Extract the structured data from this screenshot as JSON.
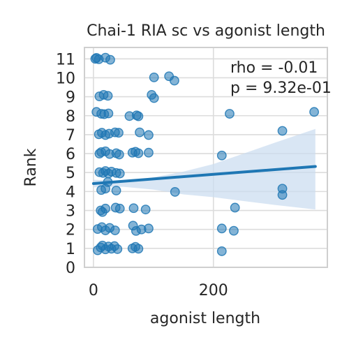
{
  "chart_data": {
    "type": "scatter",
    "title": "Chai-1 RIA sc vs agonist length",
    "xlabel": "agonist length",
    "ylabel": "Rank",
    "xlim": [
      -15,
      390
    ],
    "ylim": [
      0,
      11.6
    ],
    "xticks": [
      0,
      200
    ],
    "yticks": [
      0,
      1,
      2,
      3,
      4,
      5,
      6,
      7,
      8,
      9,
      10,
      11
    ],
    "grid": true,
    "annotations": [
      "rho = -0.01",
      "p = 9.32e-01"
    ],
    "color": "#1f77b4",
    "band_color": "#c9dcef",
    "points": [
      {
        "x": 3,
        "y": 11.0
      },
      {
        "x": 5,
        "y": 11.05
      },
      {
        "x": 9,
        "y": 10.98
      },
      {
        "x": 20,
        "y": 11.06
      },
      {
        "x": 28,
        "y": 10.95
      },
      {
        "x": 101,
        "y": 10.02
      },
      {
        "x": 126,
        "y": 10.08
      },
      {
        "x": 135,
        "y": 9.85
      },
      {
        "x": 10,
        "y": 9.02
      },
      {
        "x": 17,
        "y": 9.1
      },
      {
        "x": 24,
        "y": 9.05
      },
      {
        "x": 97,
        "y": 9.1
      },
      {
        "x": 101,
        "y": 8.93
      },
      {
        "x": 5,
        "y": 8.2
      },
      {
        "x": 13,
        "y": 8.1
      },
      {
        "x": 18,
        "y": 8.08
      },
      {
        "x": 25,
        "y": 8.12
      },
      {
        "x": 60,
        "y": 7.98
      },
      {
        "x": 72,
        "y": 8.02
      },
      {
        "x": 75,
        "y": 7.97
      },
      {
        "x": 227,
        "y": 8.1
      },
      {
        "x": 368,
        "y": 8.2
      },
      {
        "x": 9,
        "y": 7.02
      },
      {
        "x": 14,
        "y": 7.1
      },
      {
        "x": 20,
        "y": 6.98
      },
      {
        "x": 26,
        "y": 7.05
      },
      {
        "x": 36,
        "y": 7.12
      },
      {
        "x": 42,
        "y": 7.1
      },
      {
        "x": 77,
        "y": 7.12
      },
      {
        "x": 92,
        "y": 6.98
      },
      {
        "x": 315,
        "y": 7.2
      },
      {
        "x": 10,
        "y": 6.0
      },
      {
        "x": 13,
        "y": 6.08
      },
      {
        "x": 20,
        "y": 6.12
      },
      {
        "x": 27,
        "y": 5.98
      },
      {
        "x": 38,
        "y": 6.02
      },
      {
        "x": 43,
        "y": 5.95
      },
      {
        "x": 65,
        "y": 6.05
      },
      {
        "x": 70,
        "y": 6.1
      },
      {
        "x": 75,
        "y": 6.02
      },
      {
        "x": 92,
        "y": 6.05
      },
      {
        "x": 214,
        "y": 5.9
      },
      {
        "x": 10,
        "y": 5.02
      },
      {
        "x": 16,
        "y": 4.98
      },
      {
        "x": 20,
        "y": 5.08
      },
      {
        "x": 25,
        "y": 4.95
      },
      {
        "x": 30,
        "y": 5.05
      },
      {
        "x": 38,
        "y": 4.98
      },
      {
        "x": 44,
        "y": 4.95
      },
      {
        "x": 24,
        "y": 4.5
      },
      {
        "x": 13,
        "y": 4.08
      },
      {
        "x": 20,
        "y": 4.15
      },
      {
        "x": 38,
        "y": 4.05
      },
      {
        "x": 136,
        "y": 3.98
      },
      {
        "x": 315,
        "y": 4.15
      },
      {
        "x": 315,
        "y": 3.82
      },
      {
        "x": 12,
        "y": 3.0
      },
      {
        "x": 15,
        "y": 2.92
      },
      {
        "x": 20,
        "y": 3.1
      },
      {
        "x": 37,
        "y": 3.15
      },
      {
        "x": 44,
        "y": 3.1
      },
      {
        "x": 67,
        "y": 3.12
      },
      {
        "x": 87,
        "y": 3.05
      },
      {
        "x": 236,
        "y": 3.15
      },
      {
        "x": 7,
        "y": 2.02
      },
      {
        "x": 14,
        "y": 2.12
      },
      {
        "x": 20,
        "y": 1.95
      },
      {
        "x": 27,
        "y": 2.08
      },
      {
        "x": 36,
        "y": 1.95
      },
      {
        "x": 66,
        "y": 2.2
      },
      {
        "x": 71,
        "y": 1.92
      },
      {
        "x": 80,
        "y": 2.0
      },
      {
        "x": 92,
        "y": 2.05
      },
      {
        "x": 214,
        "y": 2.05
      },
      {
        "x": 234,
        "y": 1.93
      },
      {
        "x": 7,
        "y": 0.9
      },
      {
        "x": 12,
        "y": 1.05
      },
      {
        "x": 15,
        "y": 1.15
      },
      {
        "x": 20,
        "y": 0.95
      },
      {
        "x": 25,
        "y": 1.1
      },
      {
        "x": 30,
        "y": 0.98
      },
      {
        "x": 35,
        "y": 1.12
      },
      {
        "x": 40,
        "y": 0.96
      },
      {
        "x": 65,
        "y": 1.0
      },
      {
        "x": 70,
        "y": 1.08
      },
      {
        "x": 75,
        "y": 0.98
      },
      {
        "x": 214,
        "y": 0.85
      }
    ],
    "regression": {
      "x0": 0,
      "y0": 4.42,
      "x1": 370,
      "y1": 5.32
    },
    "confidence_band": {
      "x": [
        0,
        50,
        100,
        150,
        200,
        250,
        300,
        370
      ],
      "lower": [
        4.22,
        4.25,
        4.1,
        3.85,
        3.7,
        3.5,
        3.3,
        3.05
      ],
      "upper": [
        4.62,
        4.55,
        4.75,
        5.05,
        5.45,
        6.0,
        6.55,
        7.3
      ]
    }
  }
}
